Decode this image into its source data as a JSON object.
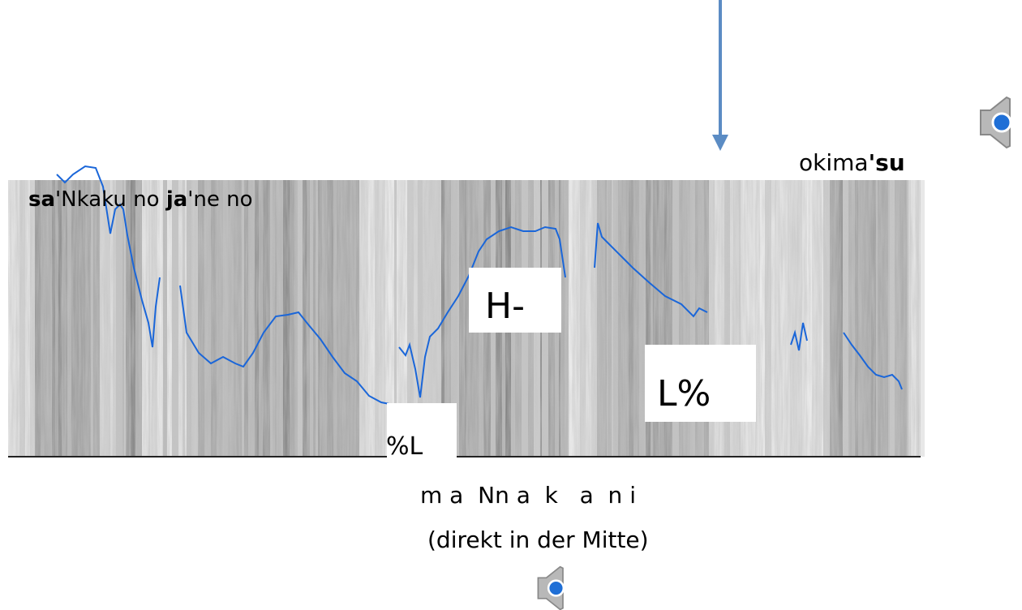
{
  "phrases": [
    {
      "segments": [
        {
          "text": "sa",
          "bold": true
        },
        {
          "text": "'Nkaku no ",
          "bold": false
        },
        {
          "text": "ja",
          "bold": true
        },
        {
          "text": "'ne no",
          "bold": false
        }
      ]
    },
    {
      "segments": [
        {
          "text": "okima",
          "bold": false
        },
        {
          "text": "'su",
          "bold": true
        }
      ]
    }
  ],
  "tones": [
    "H-",
    "%L",
    "L%"
  ],
  "segmentation": "m a  Nn a  k   a  n i",
  "note": "(direkt in der Mitte)"
}
